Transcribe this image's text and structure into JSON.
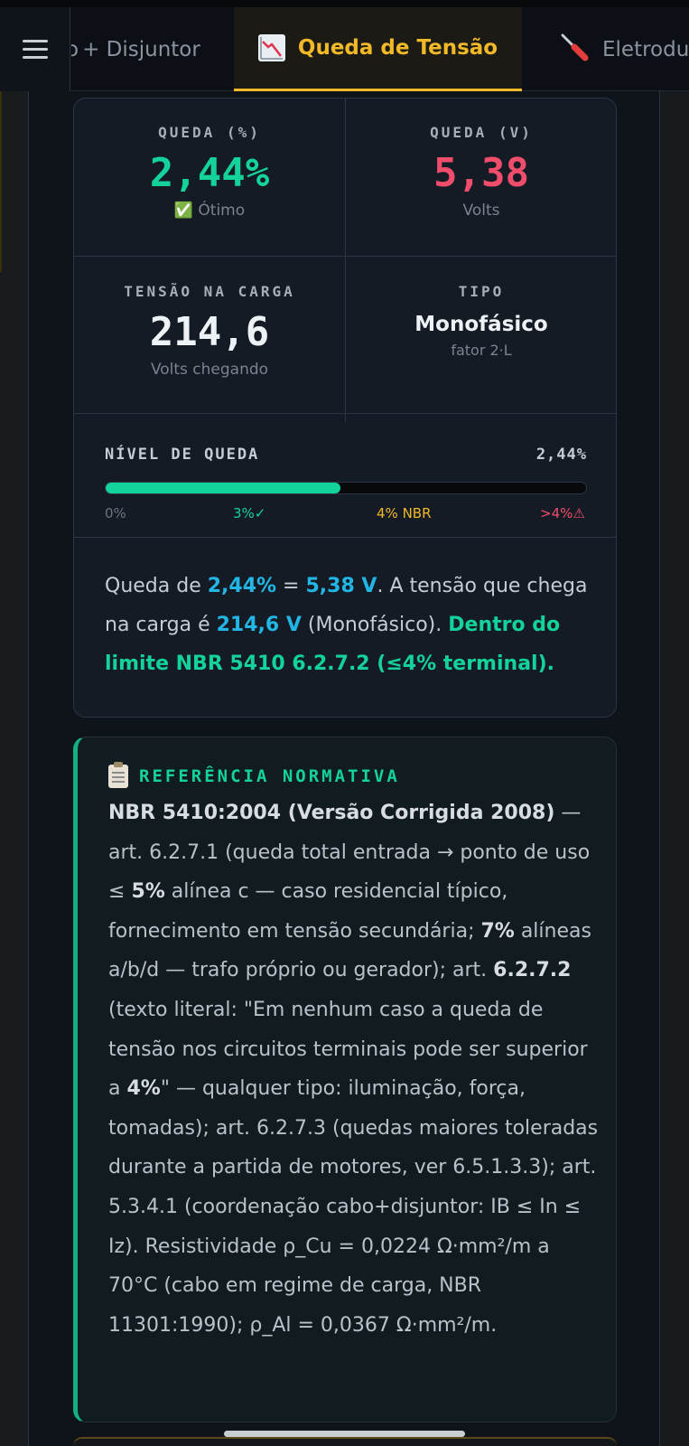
{
  "header": {
    "tabs": [
      {
        "label": "+ Disjuntor",
        "prefix": "o"
      },
      {
        "label": "Queda de Tensão",
        "icon": "chart-down-icon",
        "active": true
      },
      {
        "label": "Eletrodu",
        "icon": "screwdriver-icon"
      }
    ]
  },
  "results": {
    "drop_percent": {
      "label": "QUEDA (%)",
      "value": "2,44%",
      "status": "✅ Ótimo"
    },
    "drop_volts": {
      "label": "QUEDA (V)",
      "value": "5,38",
      "unit": "Volts"
    },
    "load_voltage": {
      "label": "TENSÃO NA CARGA",
      "value": "214,6",
      "sub": "Volts chegando"
    },
    "type": {
      "label": "TIPO",
      "value": "Monofásico",
      "sub": "fator 2·L"
    }
  },
  "level": {
    "label": "NÍVEL DE QUEDA",
    "value": "2,44%",
    "fill_percent": 48.8,
    "scale": [
      "0%",
      "3%✓",
      "4% NBR",
      ">4%⚠"
    ]
  },
  "summary": {
    "p1": "Queda de ",
    "v1": "2,44%",
    "p2": " = ",
    "v2": "5,38 V",
    "p3": ". A tensão que chega na carga é ",
    "v3": "214,6 V",
    "p4": " (Monofásico). ",
    "conclusion": "Dentro do limite NBR 5410 6.2.7.2 (≤4% terminal)."
  },
  "reference": {
    "title": "REFERÊNCIA NORMATIVA",
    "b1": "NBR 5410:2004 (Versão Corrigida 2008)",
    "t1": " — art. 6.2.7.1 (queda total entrada → ponto de uso ≤ ",
    "b2": "5%",
    "t2": " alínea c — caso residencial típico, fornecimento em tensão secundária; ",
    "b3": "7%",
    "t3": " alíneas a/b/d — trafo próprio ou gerador); art. ",
    "b4": "6.2.7.2",
    "t4": " (texto literal: \"Em nenhum caso a queda de tensão nos circuitos terminais pode ser superior a ",
    "b5": "4%",
    "t5": "\" — qualquer tipo: iluminação, força, tomadas); art. 6.2.7.3 (quedas maiores toleradas durante a partida de motores, ver 6.5.1.3.3); art. 5.3.4.1 (coordenação cabo+disjuntor: IB ≤ In ≤ Iz). Resistividade ρ_Cu = 0,0224 Ω·mm²/m a 70°C (cabo em regime de carga, NBR 11301:1990); ρ_Al = 0,0367 Ω·mm²/m."
  },
  "colors": {
    "accent_yellow": "#f1b827",
    "ok_green": "#14d39a",
    "alert_red": "#ef4d6b",
    "value_blue": "#22b6e6"
  }
}
